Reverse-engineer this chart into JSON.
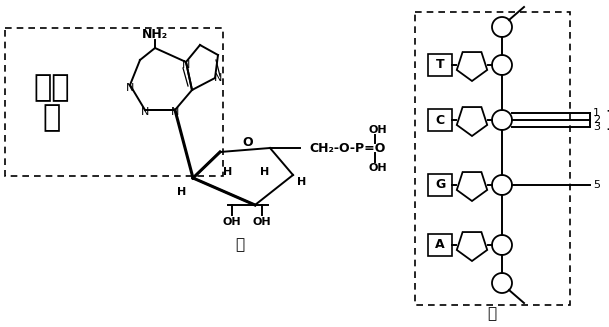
{
  "bg_color": "#ffffff",
  "text_color": "#000000",
  "figsize": [
    6.09,
    3.27
  ],
  "dpi": 100,
  "bases": [
    "T",
    "C",
    "G",
    "A"
  ],
  "title_jia": "甲",
  "title_yi": "乙",
  "adenine_cn_line1": "腺嘧",
  "adenine_cn_line2": "呉"
}
